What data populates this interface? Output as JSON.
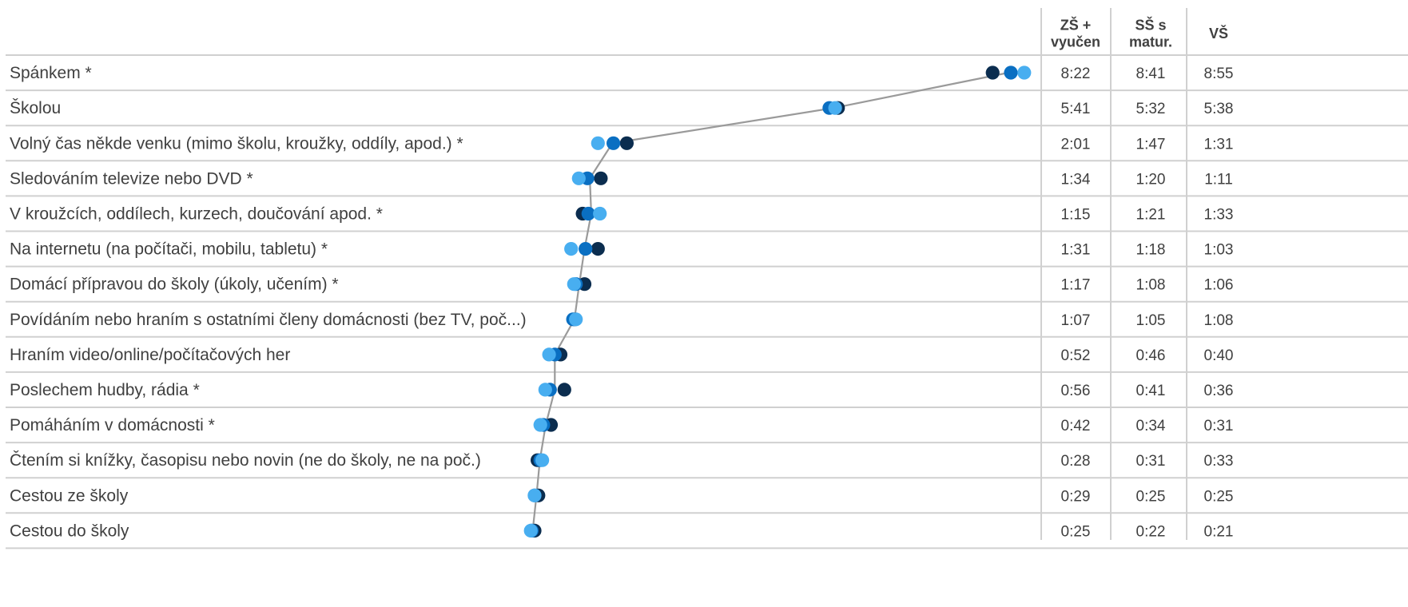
{
  "colors": {
    "zs": "#0b2d4f",
    "ss": "#0a6fc2",
    "vs": "#48aef0",
    "connector": "#9a9a9a",
    "row_line": "#d0d0d0",
    "text": "#404040"
  },
  "chart_data": {
    "type": "scatter",
    "unit": "h:mm",
    "series": [
      {
        "name": "ZŠ + vyučen",
        "header_lines": [
          "ZŠ +",
          "vyučen"
        ]
      },
      {
        "name": "SŠ s matur.",
        "header_lines": [
          "SŠ s",
          "matur."
        ]
      },
      {
        "name": "VŠ",
        "header_lines": [
          "VŠ"
        ]
      }
    ],
    "categories": [
      {
        "label": "Spánkem *",
        "values": [
          "8:22",
          "8:41",
          "8:55"
        ]
      },
      {
        "label": "Školou",
        "values": [
          "5:41",
          "5:32",
          "5:38"
        ]
      },
      {
        "label": "Volný čas někde venku (mimo školu, kroužky, oddíly, apod.) *",
        "values": [
          "2:01",
          "1:47",
          "1:31"
        ]
      },
      {
        "label": "Sledováním televize nebo DVD *",
        "values": [
          "1:34",
          "1:20",
          "1:11"
        ]
      },
      {
        "label": "V kroužcích, oddílech, kurzech, doučování apod. *",
        "values": [
          "1:15",
          "1:21",
          "1:33"
        ]
      },
      {
        "label": "Na internetu (na počítači, mobilu, tabletu) *",
        "values": [
          "1:31",
          "1:18",
          "1:03"
        ]
      },
      {
        "label": "Domácí přípravou do školy (úkoly, učením) *",
        "values": [
          "1:17",
          "1:08",
          "1:06"
        ]
      },
      {
        "label": "Povídáním nebo hraním s ostatními členy domácnosti (bez TV, poč...)",
        "values": [
          "1:07",
          "1:05",
          "1:08"
        ]
      },
      {
        "label": "Hraním video/online/počítačových her",
        "values": [
          "0:52",
          "0:46",
          "0:40"
        ]
      },
      {
        "label": "Poslechem hudby, rádia *",
        "values": [
          "0:56",
          "0:41",
          "0:36"
        ]
      },
      {
        "label": "Pomáháním v domácnosti *",
        "values": [
          "0:42",
          "0:34",
          "0:31"
        ]
      },
      {
        "label": "Čtením si knížky, časopisu nebo novin (ne do školy, ne na poč.)",
        "values": [
          "0:28",
          "0:31",
          "0:33"
        ]
      },
      {
        "label": "Cestou ze školy",
        "values": [
          "0:29",
          "0:25",
          "0:25"
        ]
      },
      {
        "label": "Cestou do školy",
        "values": [
          "0:25",
          "0:22",
          "0:21"
        ]
      }
    ]
  }
}
